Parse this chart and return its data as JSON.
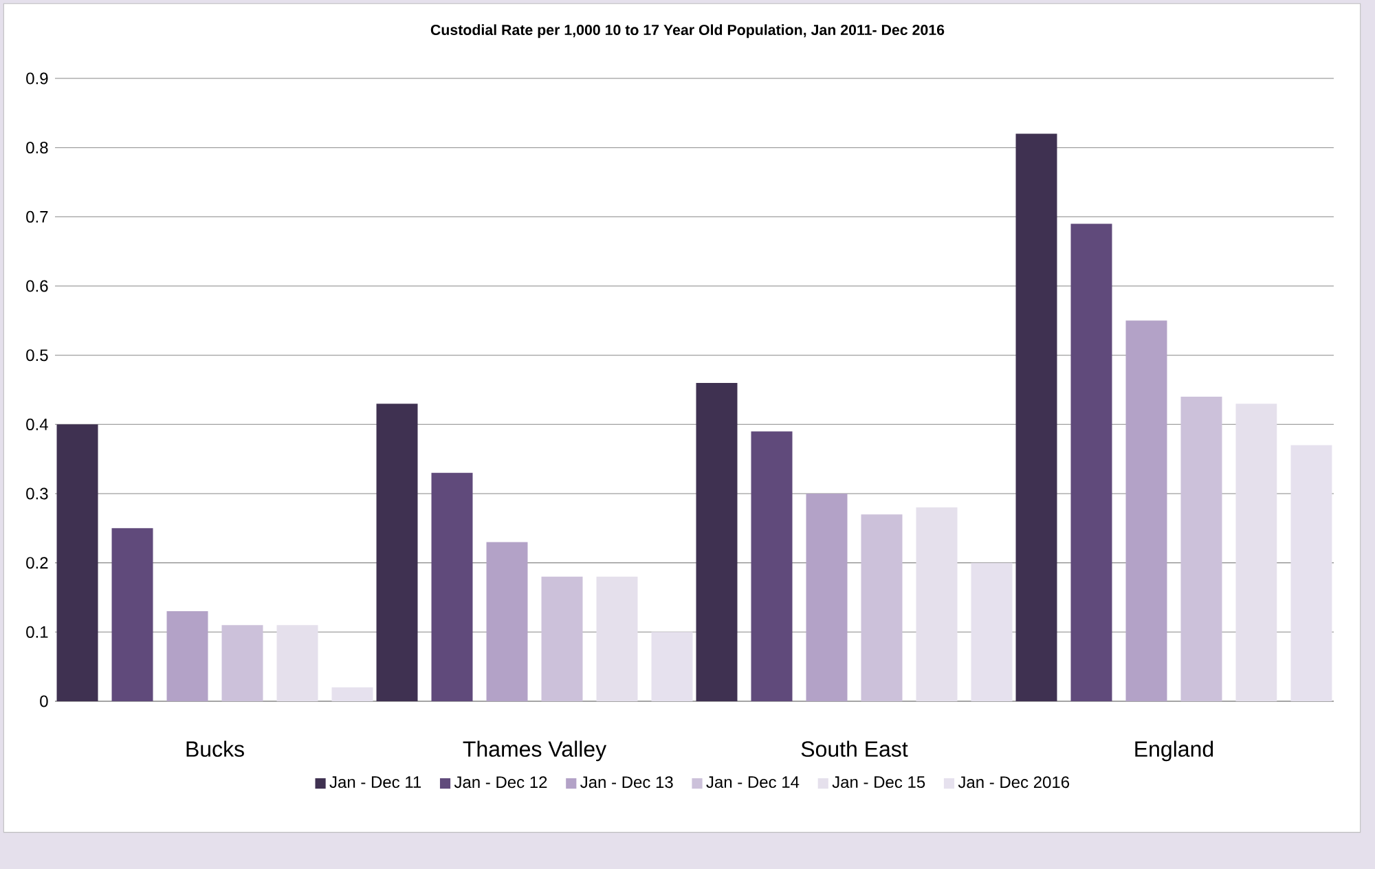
{
  "chart_data": {
    "type": "bar",
    "title": "Custodial Rate per 1,000 10 to 17 Year Old Population, Jan 2011- Dec 2016",
    "categories": [
      "Bucks",
      "Thames Valley",
      "South East",
      "England"
    ],
    "series": [
      {
        "name": "Jan  - Dec 11",
        "color": "#3f3151",
        "values": [
          0.4,
          0.43,
          0.46,
          0.82
        ]
      },
      {
        "name": "Jan - Dec 12",
        "color": "#604a7b",
        "values": [
          0.25,
          0.33,
          0.39,
          0.69
        ]
      },
      {
        "name": "Jan - Dec 13",
        "color": "#b3a2c7",
        "values": [
          0.13,
          0.23,
          0.3,
          0.55
        ]
      },
      {
        "name": "Jan - Dec 14",
        "color": "#ccc1da",
        "values": [
          0.11,
          0.18,
          0.27,
          0.44
        ]
      },
      {
        "name": "Jan - Dec 15",
        "color": "#e5e0ec",
        "values": [
          0.11,
          0.18,
          0.28,
          0.43
        ]
      },
      {
        "name": "Jan - Dec 2016",
        "color": "#e6e1ee",
        "values": [
          0.02,
          0.1,
          0.2,
          0.37
        ]
      }
    ],
    "ylim": [
      0,
      0.9
    ],
    "yticks": [
      0,
      0.1,
      0.2,
      0.3,
      0.4,
      0.5,
      0.6,
      0.7,
      0.8,
      0.9
    ],
    "grid": "y",
    "legend": "bottom"
  }
}
